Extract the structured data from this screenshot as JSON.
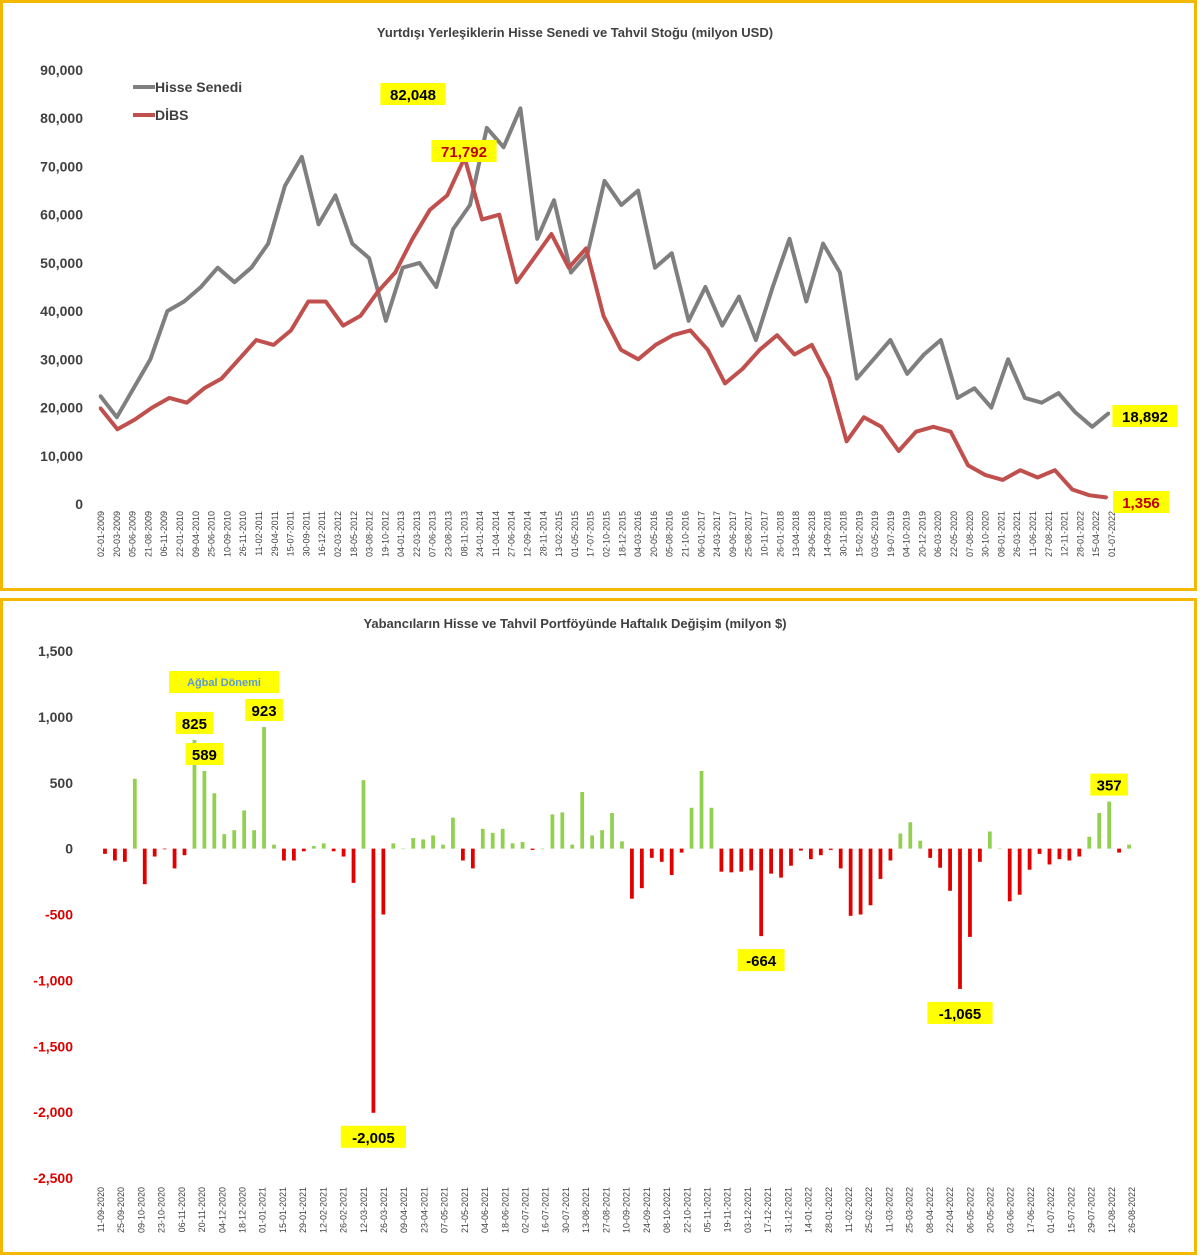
{
  "chart_data": [
    {
      "type": "line",
      "title": "Yurtdışı Yerleşiklerin Hisse Senedi ve Tahvil Stoğu (milyon USD)",
      "y_ticks": [
        "90,000",
        "80,000",
        "70,000",
        "60,000",
        "50,000",
        "40,000",
        "30,000",
        "20,000",
        "10,000",
        "0"
      ],
      "ylim": [
        0,
        90000
      ],
      "x_ticks": [
        "02-01-2009",
        "20-03-2009",
        "05-06-2009",
        "21-08-2009",
        "06-11-2009",
        "22-01-2010",
        "09-04-2010",
        "25-06-2010",
        "10-09-2010",
        "26-11-2010",
        "11-02-2011",
        "29-04-2011",
        "15-07-2011",
        "30-09-2011",
        "16-12-2011",
        "02-03-2012",
        "18-05-2012",
        "03-08-2012",
        "19-10-2012",
        "04-01-2013",
        "22-03-2013",
        "07-06-2013",
        "23-08-2013",
        "08-11-2013",
        "24-01-2014",
        "11-04-2014",
        "27-06-2014",
        "12-09-2014",
        "28-11-2014",
        "13-02-2015",
        "01-05-2015",
        "17-07-2015",
        "02-10-2015",
        "18-12-2015",
        "04-03-2016",
        "20-05-2016",
        "05-08-2016",
        "21-10-2016",
        "06-01-2017",
        "24-03-2017",
        "09-06-2017",
        "25-08-2017",
        "10-11-2017",
        "26-01-2018",
        "13-04-2018",
        "29-06-2018",
        "14-09-2018",
        "30-11-2018",
        "15-02-2019",
        "03-05-2019",
        "19-07-2019",
        "04-10-2019",
        "20-12-2019",
        "06-03-2020",
        "22-05-2020",
        "07-08-2020",
        "30-10-2020",
        "08-01-2021",
        "26-03-2021",
        "11-06-2021",
        "27-08-2021",
        "12-11-2021",
        "28-01-2022",
        "15-04-2022",
        "01-07-2022"
      ],
      "legend_position": "top-left",
      "grid": false,
      "series": [
        {
          "name": "Hisse Senedi",
          "color": "#7f7f7f",
          "points": [
            [
              0,
              22500
            ],
            [
              1,
              18000
            ],
            [
              2,
              24000
            ],
            [
              3,
              30000
            ],
            [
              4,
              40000
            ],
            [
              5,
              42000
            ],
            [
              6,
              45000
            ],
            [
              7,
              49000
            ],
            [
              8,
              46000
            ],
            [
              9,
              49000
            ],
            [
              10,
              54000
            ],
            [
              11,
              66000
            ],
            [
              12,
              72000
            ],
            [
              13,
              58000
            ],
            [
              14,
              64000
            ],
            [
              15,
              54000
            ],
            [
              16,
              51000
            ],
            [
              17,
              38000
            ],
            [
              18,
              49000
            ],
            [
              19,
              50000
            ],
            [
              20,
              45000
            ],
            [
              21,
              57000
            ],
            [
              22,
              62000
            ],
            [
              23,
              78000
            ],
            [
              24,
              74000
            ],
            [
              25,
              82048
            ],
            [
              26,
              55000
            ],
            [
              27,
              63000
            ],
            [
              28,
              48000
            ],
            [
              29,
              52000
            ],
            [
              30,
              67000
            ],
            [
              31,
              62000
            ],
            [
              32,
              65000
            ],
            [
              33,
              49000
            ],
            [
              34,
              52000
            ],
            [
              35,
              38000
            ],
            [
              36,
              45000
            ],
            [
              37,
              37000
            ],
            [
              38,
              43000
            ],
            [
              39,
              34000
            ],
            [
              40,
              45000
            ],
            [
              41,
              55000
            ],
            [
              42,
              42000
            ],
            [
              43,
              54000
            ],
            [
              44,
              48000
            ],
            [
              45,
              26000
            ],
            [
              46,
              30000
            ],
            [
              47,
              34000
            ],
            [
              48,
              27000
            ],
            [
              49,
              31000
            ],
            [
              50,
              34000
            ],
            [
              51,
              22000
            ],
            [
              52,
              24000
            ],
            [
              53,
              20000
            ],
            [
              54,
              30000
            ],
            [
              55,
              22000
            ],
            [
              56,
              21000
            ],
            [
              57,
              23000
            ],
            [
              58,
              19000
            ],
            [
              59,
              16000
            ],
            [
              60,
              18892
            ]
          ]
        },
        {
          "name": "DİBS",
          "color": "#c0504d",
          "points": [
            [
              0,
              20000
            ],
            [
              1,
              15500
            ],
            [
              2,
              17500
            ],
            [
              3,
              20000
            ],
            [
              4,
              22000
            ],
            [
              5,
              21000
            ],
            [
              6,
              24000
            ],
            [
              7,
              26000
            ],
            [
              8,
              30000
            ],
            [
              9,
              34000
            ],
            [
              10,
              33000
            ],
            [
              11,
              36000
            ],
            [
              12,
              42000
            ],
            [
              13,
              42000
            ],
            [
              14,
              37000
            ],
            [
              15,
              39000
            ],
            [
              16,
              44000
            ],
            [
              17,
              48000
            ],
            [
              18,
              55000
            ],
            [
              19,
              61000
            ],
            [
              20,
              64000
            ],
            [
              21,
              71792
            ],
            [
              22,
              59000
            ],
            [
              23,
              60000
            ],
            [
              24,
              46000
            ],
            [
              25,
              51000
            ],
            [
              26,
              56000
            ],
            [
              27,
              49000
            ],
            [
              28,
              53000
            ],
            [
              29,
              39000
            ],
            [
              30,
              32000
            ],
            [
              31,
              30000
            ],
            [
              32,
              33000
            ],
            [
              33,
              35000
            ],
            [
              34,
              36000
            ],
            [
              35,
              32000
            ],
            [
              36,
              25000
            ],
            [
              37,
              28000
            ],
            [
              38,
              32000
            ],
            [
              39,
              35000
            ],
            [
              40,
              31000
            ],
            [
              41,
              33000
            ],
            [
              42,
              26000
            ],
            [
              43,
              13000
            ],
            [
              44,
              18000
            ],
            [
              45,
              16000
            ],
            [
              46,
              11000
            ],
            [
              47,
              15000
            ],
            [
              48,
              16000
            ],
            [
              49,
              15000
            ],
            [
              50,
              8000
            ],
            [
              51,
              6000
            ],
            [
              52,
              5000
            ],
            [
              53,
              7000
            ],
            [
              54,
              5500
            ],
            [
              55,
              7000
            ],
            [
              56,
              3000
            ],
            [
              57,
              1800
            ],
            [
              58,
              1356
            ]
          ]
        }
      ],
      "data_labels": [
        {
          "text": "82,048",
          "series": "Hisse Senedi",
          "value": 82048
        },
        {
          "text": "71,792",
          "series": "DİBS",
          "value": 71792
        },
        {
          "text": "18,892",
          "series": "Hisse Senedi",
          "value": 18892
        },
        {
          "text": "1,356",
          "series": "DİBS",
          "value": 1356
        }
      ]
    },
    {
      "type": "bar",
      "title": "Yabancıların Hisse ve Tahvil Portföyünde Haftalık Değişim (milyon $)",
      "y_ticks": [
        "1,500",
        "1,000",
        "500",
        "0",
        "-500",
        "-1,000",
        "-1,500",
        "-2,000",
        "-2,500"
      ],
      "ylim": [
        -2500,
        1500
      ],
      "positive_color": "#92d050",
      "negative_color": "#e00000",
      "x_ticks": [
        "11-09-2020",
        "25-09-2020",
        "09-10-2020",
        "23-10-2020",
        "06-11-2020",
        "20-11-2020",
        "04-12-2020",
        "18-12-2020",
        "01-01-2021",
        "15-01-2021",
        "29-01-2021",
        "12-02-2021",
        "26-02-2021",
        "12-03-2021",
        "26-03-2021",
        "09-04-2021",
        "23-04-2021",
        "07-05-2021",
        "21-05-2021",
        "04-06-2021",
        "18-06-2021",
        "02-07-2021",
        "16-07-2021",
        "30-07-2021",
        "13-08-2021",
        "27-08-2021",
        "10-09-2021",
        "24-09-2021",
        "08-10-2021",
        "22-10-2021",
        "05-11-2021",
        "19-11-2021",
        "03-12-2021",
        "17-12-2021",
        "31-12-2021",
        "14-01-2022",
        "28-01-2022",
        "11-02-2022",
        "25-02-2022",
        "11-03-2022",
        "25-03-2022",
        "08-04-2022",
        "22-04-2022",
        "06-05-2022",
        "20-05-2022",
        "03-06-2022",
        "17-06-2022",
        "01-07-2022",
        "15-07-2022",
        "29-07-2022",
        "12-08-2022",
        "26-08-2022"
      ],
      "values": [
        -40,
        -90,
        -100,
        530,
        -270,
        -60,
        -5,
        -150,
        -50,
        825,
        589,
        420,
        110,
        140,
        290,
        140,
        923,
        30,
        -90,
        -90,
        -20,
        20,
        40,
        -20,
        -60,
        -260,
        520,
        -2005,
        -500,
        40,
        0,
        80,
        70,
        100,
        30,
        235,
        -90,
        -150,
        150,
        120,
        150,
        40,
        50,
        -10,
        0,
        260,
        275,
        30,
        430,
        100,
        140,
        270,
        55,
        -380,
        -300,
        -70,
        -100,
        -200,
        -30,
        310,
        589,
        310,
        -175,
        -180,
        -175,
        -165,
        -664,
        -190,
        -220,
        -130,
        -15,
        -80,
        -50,
        -10,
        -150,
        -510,
        -500,
        -430,
        -230,
        -90,
        115,
        200,
        60,
        -70,
        -145,
        -320,
        -1065,
        -670,
        -100,
        130,
        0,
        -400,
        -350,
        -160,
        -40,
        -120,
        -80,
        -90,
        -60,
        90,
        270,
        357,
        -30,
        30
      ],
      "data_labels": [
        {
          "text": "825",
          "value": 825
        },
        {
          "text": "923",
          "value": 923
        },
        {
          "text": "-2,005",
          "value": -2005
        },
        {
          "text": "589",
          "value": 589
        },
        {
          "text": "-664",
          "value": -664
        },
        {
          "text": "-1,065",
          "value": -1065
        },
        {
          "text": "357",
          "value": 357
        }
      ],
      "annotation": "Ağbal Dönemi"
    }
  ]
}
